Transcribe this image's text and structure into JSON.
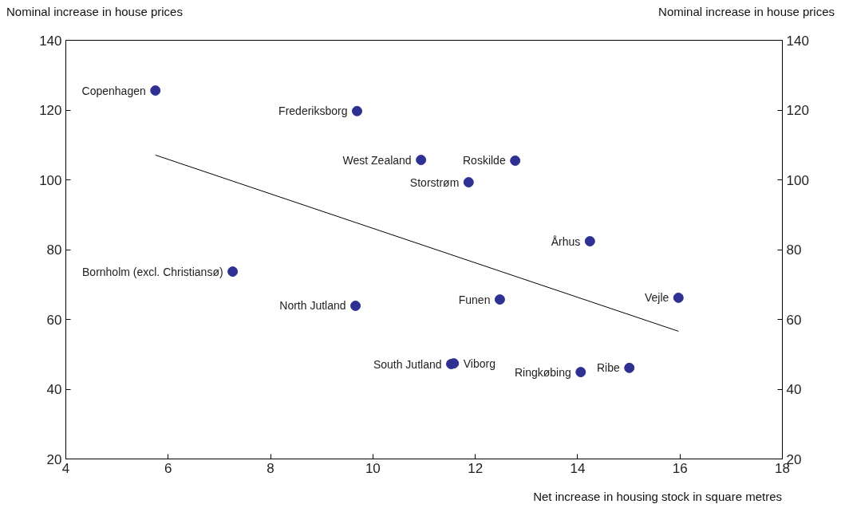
{
  "chart_data": {
    "type": "scatter",
    "xlabel": "Net increase in housing stock in square metres",
    "ylabel": "Nominal increase in house prices",
    "y2label": "Nominal increase in house prices",
    "xlim": [
      4,
      18
    ],
    "xticks": [
      4,
      6,
      8,
      10,
      12,
      14,
      16,
      18
    ],
    "ylim": [
      20,
      140
    ],
    "yticks": [
      20,
      40,
      60,
      80,
      100,
      120,
      140
    ],
    "y2lim": [
      20,
      140
    ],
    "y2ticks": [
      20,
      40,
      60,
      80,
      100,
      120,
      140
    ],
    "grid": false,
    "series": [
      {
        "marker": "circle",
        "color": "#2e3192",
        "x": [
          5.75,
          9.69,
          10.94,
          12.78,
          11.87,
          14.24,
          7.26,
          9.66,
          12.48,
          15.97,
          11.53,
          11.58,
          14.06,
          15.01
        ],
        "values": [
          125.6,
          119.7,
          105.7,
          105.5,
          99.3,
          82.4,
          73.7,
          63.9,
          65.7,
          66.2,
          47.2,
          47.4,
          44.9,
          46.1
        ]
      },
      {
        "type": "line",
        "color": "#000000",
        "x": [
          5.75,
          15.97
        ],
        "values": [
          107.1,
          56.6
        ]
      }
    ],
    "annotations": [
      {
        "text": "Copenhagen",
        "x": 5.75,
        "y": 125.6
      },
      {
        "text": "Frederiksborg",
        "x": 9.69,
        "y": 119.7
      },
      {
        "text": "West Zealand",
        "x": 10.94,
        "y": 105.7
      },
      {
        "text": "Roskilde",
        "x": 12.78,
        "y": 105.5
      },
      {
        "text": "Storstrøm",
        "x": 11.87,
        "y": 99.3
      },
      {
        "text": "Århus",
        "x": 14.24,
        "y": 82.4
      },
      {
        "text": "Bornholm (excl. Christiansø)",
        "x": 7.26,
        "y": 73.7
      },
      {
        "text": "North Jutland",
        "x": 9.66,
        "y": 63.9
      },
      {
        "text": "Funen",
        "x": 12.48,
        "y": 65.7
      },
      {
        "text": "Vejle",
        "x": 15.97,
        "y": 66.2
      },
      {
        "text": "South Jutland",
        "x": 11.53,
        "y": 47.2
      },
      {
        "text": "Viborg",
        "x": 11.58,
        "y": 47.4
      },
      {
        "text": "Ringkøbing",
        "x": 14.06,
        "y": 44.9
      },
      {
        "text": "Ribe",
        "x": 15.01,
        "y": 46.1
      }
    ]
  }
}
